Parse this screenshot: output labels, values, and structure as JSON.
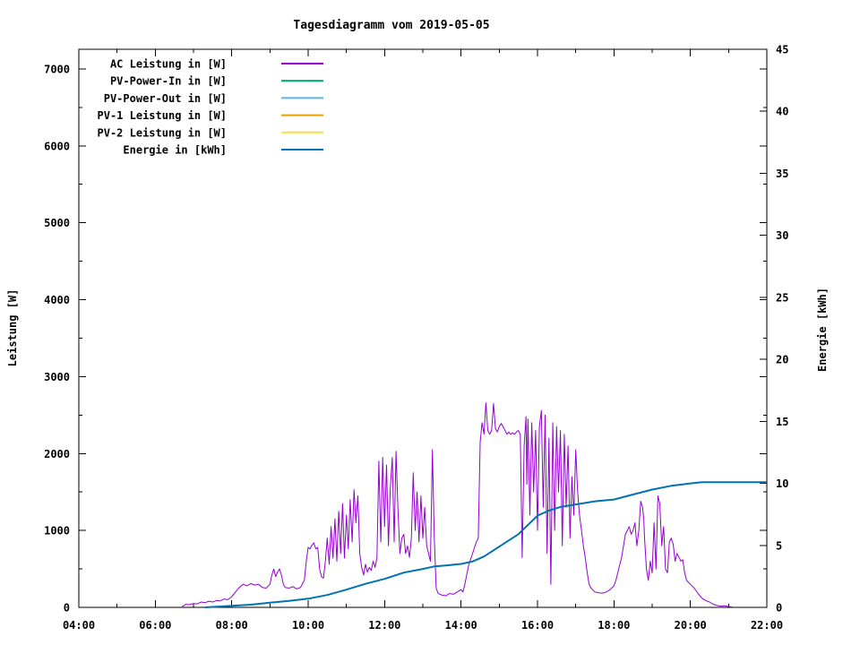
{
  "chart_data": {
    "type": "line",
    "title": "Tagesdiagramm vom 2019-05-05",
    "background": "#ffffff",
    "grid": false,
    "x_axis": {
      "min": 4,
      "max": 22,
      "tick_values": [
        4,
        6,
        8,
        10,
        12,
        14,
        16,
        18,
        20,
        22
      ],
      "tick_labels": [
        "04:00",
        "06:00",
        "08:00",
        "10:00",
        "12:00",
        "14:00",
        "16:00",
        "18:00",
        "20:00",
        "22:00"
      ],
      "minor_tick_values": [
        5,
        7,
        9,
        11,
        13,
        15,
        17,
        19,
        21
      ]
    },
    "y_left": {
      "label": "Leistung [W]",
      "min": 0,
      "max": 7255,
      "tick_values": [
        0,
        1000,
        2000,
        3000,
        4000,
        5000,
        6000,
        7000
      ],
      "tick_labels": [
        "0",
        "1000",
        "2000",
        "3000",
        "4000",
        "5000",
        "6000",
        "7000"
      ],
      "minor_tick_values": [
        500,
        1500,
        2500,
        3500,
        4500,
        5500,
        6500
      ]
    },
    "y_right": {
      "label": "Energie [kWh]",
      "min": 0,
      "max": 45,
      "tick_values": [
        0,
        5,
        10,
        15,
        20,
        25,
        30,
        35,
        40,
        45
      ],
      "tick_labels": [
        "0",
        "5",
        "10",
        "15",
        "20",
        "25",
        "30",
        "35",
        "40",
        "45"
      ]
    },
    "legend": [
      {
        "id": "ac-leistung",
        "label": "AC Leistung in [W]",
        "color": "#9400d3"
      },
      {
        "id": "pv-power-in",
        "label": "PV-Power-In in [W]",
        "color": "#009e73"
      },
      {
        "id": "pv-power-out",
        "label": "PV-Power-Out in [W]",
        "color": "#56b4e9"
      },
      {
        "id": "pv1-leistung",
        "label": "PV-1 Leistung in [W]",
        "color": "#e69f00"
      },
      {
        "id": "pv2-leistung",
        "label": "PV-2 Leistung in [W]",
        "color": "#f0e442"
      },
      {
        "id": "energie",
        "label": "Energie in [kWh]",
        "color": "#0072b2"
      }
    ],
    "series": [
      {
        "id": "ac-leistung",
        "name": "AC Leistung in [W]",
        "color": "#9400d3",
        "axis": "left",
        "stroke_width": 1,
        "points": [
          [
            6.7,
            10
          ],
          [
            6.75,
            25
          ],
          [
            6.8,
            40
          ],
          [
            6.9,
            35
          ],
          [
            7.0,
            50
          ],
          [
            7.1,
            45
          ],
          [
            7.2,
            70
          ],
          [
            7.3,
            60
          ],
          [
            7.4,
            80
          ],
          [
            7.5,
            70
          ],
          [
            7.6,
            90
          ],
          [
            7.7,
            85
          ],
          [
            7.8,
            110
          ],
          [
            7.9,
            100
          ],
          [
            8.0,
            140
          ],
          [
            8.1,
            200
          ],
          [
            8.2,
            260
          ],
          [
            8.3,
            300
          ],
          [
            8.4,
            280
          ],
          [
            8.5,
            310
          ],
          [
            8.6,
            290
          ],
          [
            8.7,
            300
          ],
          [
            8.8,
            260
          ],
          [
            8.9,
            250
          ],
          [
            9.0,
            300
          ],
          [
            9.05,
            420
          ],
          [
            9.1,
            500
          ],
          [
            9.15,
            400
          ],
          [
            9.2,
            460
          ],
          [
            9.25,
            500
          ],
          [
            9.3,
            420
          ],
          [
            9.35,
            300
          ],
          [
            9.4,
            260
          ],
          [
            9.5,
            250
          ],
          [
            9.6,
            270
          ],
          [
            9.7,
            240
          ],
          [
            9.8,
            260
          ],
          [
            9.9,
            350
          ],
          [
            9.95,
            600
          ],
          [
            10.0,
            780
          ],
          [
            10.05,
            760
          ],
          [
            10.1,
            810
          ],
          [
            10.15,
            840
          ],
          [
            10.2,
            760
          ],
          [
            10.25,
            780
          ],
          [
            10.3,
            500
          ],
          [
            10.35,
            400
          ],
          [
            10.4,
            380
          ],
          [
            10.45,
            600
          ],
          [
            10.5,
            900
          ],
          [
            10.55,
            560
          ],
          [
            10.6,
            1050
          ],
          [
            10.65,
            640
          ],
          [
            10.7,
            1150
          ],
          [
            10.75,
            600
          ],
          [
            10.8,
            1250
          ],
          [
            10.85,
            700
          ],
          [
            10.9,
            1350
          ],
          [
            10.95,
            640
          ],
          [
            11.0,
            1200
          ],
          [
            11.05,
            760
          ],
          [
            11.1,
            1400
          ],
          [
            11.15,
            850
          ],
          [
            11.2,
            1530
          ],
          [
            11.25,
            1100
          ],
          [
            11.3,
            1450
          ],
          [
            11.35,
            700
          ],
          [
            11.4,
            520
          ],
          [
            11.45,
            420
          ],
          [
            11.5,
            560
          ],
          [
            11.55,
            460
          ],
          [
            11.6,
            520
          ],
          [
            11.65,
            480
          ],
          [
            11.7,
            600
          ],
          [
            11.75,
            520
          ],
          [
            11.8,
            650
          ],
          [
            11.85,
            1900
          ],
          [
            11.9,
            850
          ],
          [
            11.95,
            1950
          ],
          [
            12.0,
            1050
          ],
          [
            12.05,
            1850
          ],
          [
            12.1,
            800
          ],
          [
            12.15,
            1550
          ],
          [
            12.2,
            1950
          ],
          [
            12.25,
            850
          ],
          [
            12.3,
            2030
          ],
          [
            12.35,
            1250
          ],
          [
            12.4,
            700
          ],
          [
            12.45,
            900
          ],
          [
            12.5,
            950
          ],
          [
            12.55,
            700
          ],
          [
            12.6,
            800
          ],
          [
            12.65,
            650
          ],
          [
            12.7,
            900
          ],
          [
            12.75,
            1750
          ],
          [
            12.8,
            1000
          ],
          [
            12.85,
            1500
          ],
          [
            12.9,
            850
          ],
          [
            12.95,
            1450
          ],
          [
            13.0,
            900
          ],
          [
            13.05,
            1300
          ],
          [
            13.1,
            800
          ],
          [
            13.15,
            700
          ],
          [
            13.2,
            600
          ],
          [
            13.25,
            2050
          ],
          [
            13.3,
            900
          ],
          [
            13.35,
            250
          ],
          [
            13.4,
            180
          ],
          [
            13.5,
            160
          ],
          [
            13.6,
            150
          ],
          [
            13.7,
            180
          ],
          [
            13.8,
            170
          ],
          [
            13.9,
            200
          ],
          [
            14.0,
            230
          ],
          [
            14.05,
            200
          ],
          [
            14.1,
            300
          ],
          [
            14.2,
            550
          ],
          [
            14.3,
            700
          ],
          [
            14.4,
            850
          ],
          [
            14.45,
            900
          ],
          [
            14.5,
            2150
          ],
          [
            14.55,
            2400
          ],
          [
            14.6,
            2250
          ],
          [
            14.65,
            2660
          ],
          [
            14.7,
            2300
          ],
          [
            14.75,
            2250
          ],
          [
            14.8,
            2300
          ],
          [
            14.85,
            2650
          ],
          [
            14.9,
            2320
          ],
          [
            14.95,
            2280
          ],
          [
            15.0,
            2350
          ],
          [
            15.05,
            2390
          ],
          [
            15.1,
            2350
          ],
          [
            15.15,
            2300
          ],
          [
            15.2,
            2250
          ],
          [
            15.25,
            2280
          ],
          [
            15.3,
            2250
          ],
          [
            15.35,
            2270
          ],
          [
            15.4,
            2250
          ],
          [
            15.45,
            2280
          ],
          [
            15.5,
            2300
          ],
          [
            15.55,
            2250
          ],
          [
            15.6,
            650
          ],
          [
            15.65,
            2100
          ],
          [
            15.7,
            2480
          ],
          [
            15.72,
            1600
          ],
          [
            15.75,
            2450
          ],
          [
            15.8,
            1200
          ],
          [
            15.85,
            2400
          ],
          [
            15.9,
            1500
          ],
          [
            15.95,
            2300
          ],
          [
            16.0,
            1000
          ],
          [
            16.05,
            2350
          ],
          [
            16.1,
            2560
          ],
          [
            16.15,
            1300
          ],
          [
            16.2,
            2500
          ],
          [
            16.25,
            700
          ],
          [
            16.3,
            2200
          ],
          [
            16.35,
            300
          ],
          [
            16.4,
            2400
          ],
          [
            16.45,
            1000
          ],
          [
            16.5,
            2350
          ],
          [
            16.55,
            1500
          ],
          [
            16.6,
            2300
          ],
          [
            16.65,
            800
          ],
          [
            16.7,
            2250
          ],
          [
            16.75,
            1300
          ],
          [
            16.8,
            2100
          ],
          [
            16.85,
            900
          ],
          [
            16.9,
            1700
          ],
          [
            16.95,
            1200
          ],
          [
            17.0,
            2050
          ],
          [
            17.05,
            1500
          ],
          [
            17.1,
            1200
          ],
          [
            17.15,
            1000
          ],
          [
            17.2,
            800
          ],
          [
            17.25,
            650
          ],
          [
            17.3,
            450
          ],
          [
            17.35,
            300
          ],
          [
            17.4,
            250
          ],
          [
            17.5,
            200
          ],
          [
            17.6,
            190
          ],
          [
            17.7,
            185
          ],
          [
            17.8,
            200
          ],
          [
            17.9,
            230
          ],
          [
            18.0,
            280
          ],
          [
            18.05,
            350
          ],
          [
            18.1,
            450
          ],
          [
            18.15,
            550
          ],
          [
            18.2,
            650
          ],
          [
            18.25,
            800
          ],
          [
            18.3,
            950
          ],
          [
            18.35,
            1000
          ],
          [
            18.4,
            1050
          ],
          [
            18.45,
            950
          ],
          [
            18.5,
            1000
          ],
          [
            18.55,
            1100
          ],
          [
            18.6,
            800
          ],
          [
            18.65,
            1000
          ],
          [
            18.7,
            1380
          ],
          [
            18.75,
            1300
          ],
          [
            18.78,
            1150
          ],
          [
            18.8,
            900
          ],
          [
            18.85,
            500
          ],
          [
            18.9,
            350
          ],
          [
            18.95,
            600
          ],
          [
            19.0,
            450
          ],
          [
            19.05,
            1100
          ],
          [
            19.1,
            500
          ],
          [
            19.15,
            1450
          ],
          [
            19.2,
            1350
          ],
          [
            19.25,
            800
          ],
          [
            19.3,
            1050
          ],
          [
            19.35,
            500
          ],
          [
            19.4,
            450
          ],
          [
            19.45,
            850
          ],
          [
            19.5,
            900
          ],
          [
            19.55,
            820
          ],
          [
            19.6,
            600
          ],
          [
            19.65,
            700
          ],
          [
            19.7,
            650
          ],
          [
            19.75,
            600
          ],
          [
            19.8,
            620
          ],
          [
            19.85,
            450
          ],
          [
            19.9,
            350
          ],
          [
            20.0,
            300
          ],
          [
            20.1,
            250
          ],
          [
            20.2,
            180
          ],
          [
            20.3,
            120
          ],
          [
            20.4,
            90
          ],
          [
            20.5,
            70
          ],
          [
            20.6,
            40
          ],
          [
            20.7,
            25
          ],
          [
            20.8,
            15
          ],
          [
            20.9,
            20
          ],
          [
            21.0,
            10
          ],
          [
            21.1,
            5
          ]
        ]
      },
      {
        "id": "pv-power-in",
        "name": "PV-Power-In in [W]",
        "color": "#009e73",
        "axis": "left",
        "stroke_width": 1,
        "points": []
      },
      {
        "id": "pv-power-out",
        "name": "PV-Power-Out in [W]",
        "color": "#56b4e9",
        "axis": "left",
        "stroke_width": 1,
        "points": []
      },
      {
        "id": "pv1-leistung",
        "name": "PV-1 Leistung in [W]",
        "color": "#e69f00",
        "axis": "left",
        "stroke_width": 1,
        "points": []
      },
      {
        "id": "pv2-leistung",
        "name": "PV-2 Leistung in [W]",
        "color": "#f0e442",
        "axis": "left",
        "stroke_width": 1,
        "points": []
      },
      {
        "id": "energie",
        "name": "Energie in [kWh]",
        "color": "#0072b2",
        "axis": "right",
        "stroke_width": 2,
        "points": [
          [
            7.3,
            0
          ],
          [
            7.6,
            0.05
          ],
          [
            8.0,
            0.12
          ],
          [
            8.5,
            0.22
          ],
          [
            9.0,
            0.38
          ],
          [
            9.5,
            0.52
          ],
          [
            10.0,
            0.7
          ],
          [
            10.5,
            1.0
          ],
          [
            11.0,
            1.43
          ],
          [
            11.5,
            1.9
          ],
          [
            12.0,
            2.3
          ],
          [
            12.5,
            2.8
          ],
          [
            13.0,
            3.1
          ],
          [
            13.3,
            3.3
          ],
          [
            13.6,
            3.38
          ],
          [
            14.0,
            3.5
          ],
          [
            14.3,
            3.7
          ],
          [
            14.6,
            4.1
          ],
          [
            15.0,
            4.9
          ],
          [
            15.5,
            5.9
          ],
          [
            16.0,
            7.4
          ],
          [
            16.3,
            7.8
          ],
          [
            16.6,
            8.1
          ],
          [
            17.0,
            8.3
          ],
          [
            17.5,
            8.55
          ],
          [
            18.0,
            8.7
          ],
          [
            18.5,
            9.1
          ],
          [
            19.0,
            9.5
          ],
          [
            19.5,
            9.8
          ],
          [
            20.0,
            10.0
          ],
          [
            20.3,
            10.1
          ],
          [
            21.0,
            10.1
          ],
          [
            21.5,
            10.1
          ],
          [
            22.0,
            10.1
          ]
        ]
      }
    ]
  }
}
